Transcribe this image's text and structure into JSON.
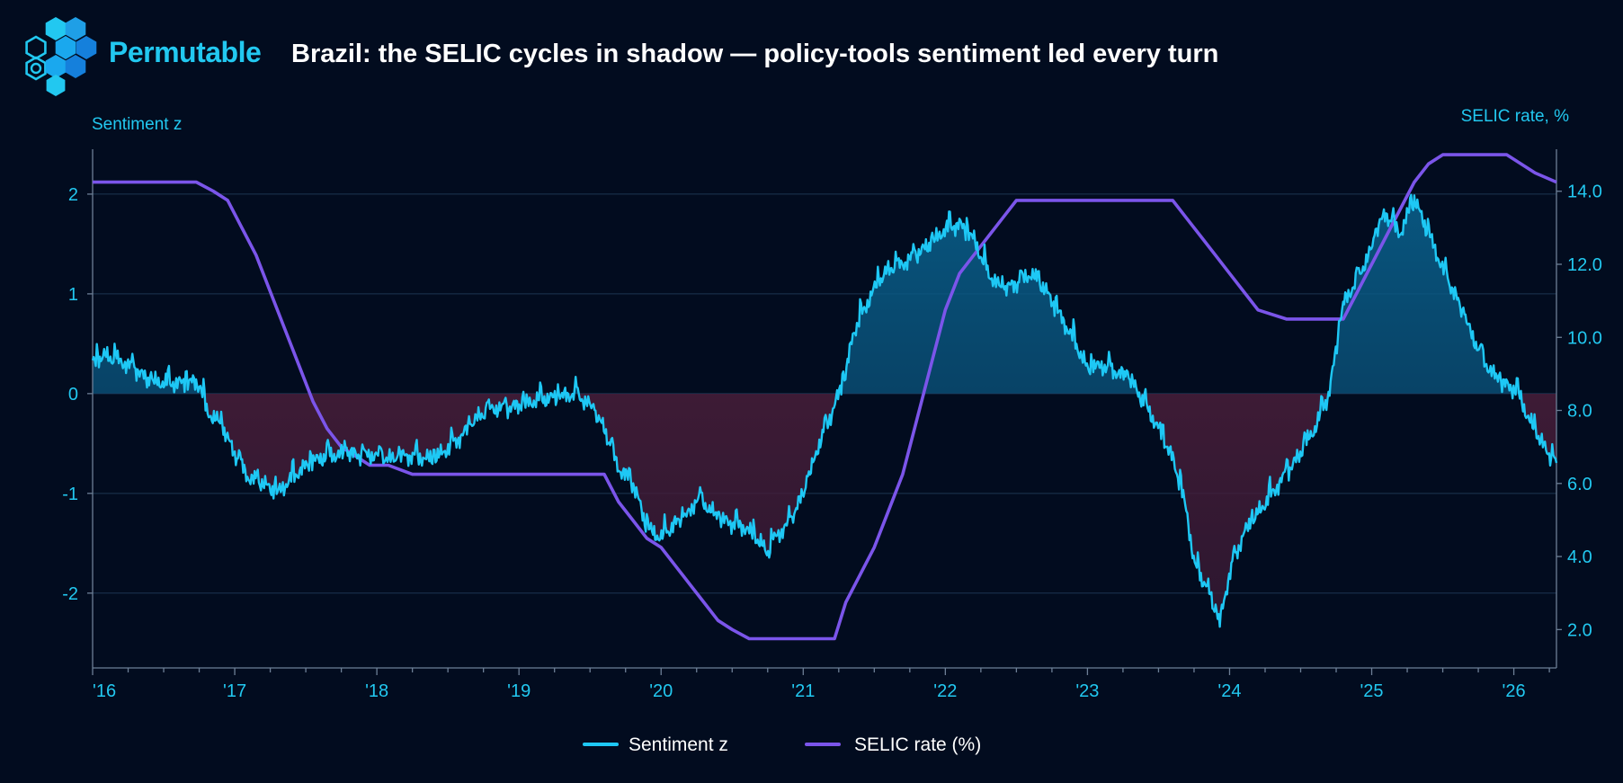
{
  "header": {
    "brand": "Permutable",
    "title": "Brazil: the SELIC cycles in shadow — policy-tools sentiment led every turn"
  },
  "colors": {
    "background": "#020c1f",
    "sentiment": "#1ec8f5",
    "selic": "#7b55ea",
    "positive_fill": "#0a5a86",
    "negative_fill": "#5b2340",
    "accent": "#22c8f0"
  },
  "icons": {
    "logo": "hexagon-cluster-icon"
  },
  "chart_data": {
    "type": "line",
    "left_axis": {
      "label": "Sentiment z",
      "ticks": [
        2,
        1,
        0,
        -1,
        -2
      ],
      "tick_labels": [
        "2",
        "1",
        "0",
        "-1",
        "-2"
      ],
      "range": [
        -2.75,
        2.45
      ]
    },
    "right_axis": {
      "label": "SELIC rate, %",
      "ticks": [
        14,
        12,
        10,
        8,
        6,
        4,
        2
      ],
      "tick_labels": [
        "14.0",
        "12.0",
        "10.0",
        "8.0",
        "6.0",
        "4.0",
        "2.0"
      ],
      "range": [
        0.95,
        15.15
      ]
    },
    "x_axis": {
      "ticks": [
        2016,
        2017,
        2018,
        2019,
        2020,
        2021,
        2022,
        2023,
        2024,
        2025,
        2026
      ],
      "tick_labels": [
        "'16",
        "'17",
        "'18",
        "'19",
        "'20",
        "'21",
        "'22",
        "'23",
        "'24",
        "'25",
        "'26"
      ],
      "range": [
        2016.0,
        2026.3
      ]
    },
    "grid": true,
    "legend_position": "bottom-center",
    "legend": [
      "Sentiment z",
      "SELIC rate (%)"
    ],
    "series": [
      {
        "name": "Sentiment z",
        "axis": "left",
        "shaded_vs_zero": true,
        "x": [
          2016.0,
          2016.08,
          2016.2,
          2016.3,
          2016.4,
          2016.55,
          2016.7,
          2016.76,
          2016.8,
          2016.9,
          2017.0,
          2017.1,
          2017.2,
          2017.25,
          2017.3,
          2017.4,
          2017.5,
          2017.6,
          2017.7,
          2017.8,
          2017.9,
          2018.0,
          2018.1,
          2018.2,
          2018.3,
          2018.4,
          2018.5,
          2018.6,
          2018.7,
          2018.8,
          2018.9,
          2019.0,
          2019.1,
          2019.2,
          2019.3,
          2019.4,
          2019.5,
          2019.6,
          2019.65,
          2019.7,
          2019.8,
          2019.85,
          2019.9,
          2020.0,
          2020.1,
          2020.2,
          2020.25,
          2020.3,
          2020.4,
          2020.5,
          2020.6,
          2020.7,
          2020.75,
          2020.8,
          2020.9,
          2021.0,
          2021.05,
          2021.1,
          2021.2,
          2021.3,
          2021.35,
          2021.4,
          2021.5,
          2021.6,
          2021.7,
          2021.8,
          2021.9,
          2022.0,
          2022.1,
          2022.2,
          2022.3,
          2022.4,
          2022.5,
          2022.6,
          2022.7,
          2022.8,
          2022.9,
          2023.0,
          2023.1,
          2023.2,
          2023.3,
          2023.4,
          2023.5,
          2023.6,
          2023.65,
          2023.7,
          2023.75,
          2023.8,
          2023.85,
          2023.9,
          2023.93,
          2024.0,
          2024.1,
          2024.2,
          2024.3,
          2024.4,
          2024.5,
          2024.6,
          2024.7,
          2024.8,
          2024.9,
          2025.0,
          2025.05,
          2025.1,
          2025.2,
          2025.3,
          2025.4,
          2025.5,
          2025.6,
          2025.7,
          2025.8,
          2025.9,
          2026.0,
          2026.05,
          2026.1,
          2026.2,
          2026.3
        ],
        "values": [
          0.3,
          0.38,
          0.32,
          0.25,
          0.12,
          0.1,
          0.12,
          0.08,
          -0.18,
          -0.3,
          -0.6,
          -0.85,
          -0.9,
          -0.95,
          -1.0,
          -0.85,
          -0.72,
          -0.65,
          -0.62,
          -0.6,
          -0.62,
          -0.62,
          -0.66,
          -0.62,
          -0.64,
          -0.66,
          -0.55,
          -0.42,
          -0.25,
          -0.15,
          -0.15,
          -0.12,
          -0.08,
          -0.05,
          -0.03,
          0.0,
          -0.12,
          -0.35,
          -0.55,
          -0.75,
          -0.9,
          -1.1,
          -1.35,
          -1.45,
          -1.3,
          -1.2,
          -1.05,
          -1.1,
          -1.25,
          -1.3,
          -1.35,
          -1.5,
          -1.6,
          -1.45,
          -1.3,
          -1.0,
          -0.8,
          -0.55,
          -0.2,
          0.2,
          0.6,
          0.75,
          1.05,
          1.25,
          1.3,
          1.4,
          1.5,
          1.65,
          1.7,
          1.55,
          1.2,
          1.05,
          1.1,
          1.2,
          1.05,
          0.8,
          0.55,
          0.25,
          0.28,
          0.22,
          0.15,
          -0.1,
          -0.35,
          -0.65,
          -0.9,
          -1.2,
          -1.7,
          -1.85,
          -1.95,
          -2.2,
          -2.3,
          -1.8,
          -1.4,
          -1.2,
          -1.0,
          -0.8,
          -0.6,
          -0.35,
          0.0,
          0.9,
          1.15,
          1.45,
          1.7,
          1.8,
          1.6,
          1.95,
          1.6,
          1.25,
          0.95,
          0.6,
          0.3,
          0.12,
          0.05,
          -0.05,
          -0.25,
          -0.5,
          -0.72
        ]
      },
      {
        "name": "SELIC rate (%)",
        "axis": "right",
        "x": [
          2016.0,
          2016.73,
          2016.85,
          2016.95,
          2017.05,
          2017.15,
          2017.25,
          2017.35,
          2017.45,
          2017.55,
          2017.65,
          2017.75,
          2017.85,
          2017.95,
          2018.08,
          2018.25,
          2019.6,
          2019.7,
          2019.8,
          2019.9,
          2020.0,
          2020.1,
          2020.2,
          2020.3,
          2020.4,
          2020.5,
          2020.62,
          2021.22,
          2021.3,
          2021.4,
          2021.5,
          2021.6,
          2021.7,
          2021.8,
          2021.9,
          2022.0,
          2022.1,
          2022.2,
          2022.3,
          2022.4,
          2022.5,
          2022.6,
          2022.68,
          2023.6,
          2023.7,
          2023.8,
          2023.9,
          2024.0,
          2024.1,
          2024.2,
          2024.4,
          2024.8,
          2024.9,
          2025.0,
          2025.1,
          2025.2,
          2025.3,
          2025.4,
          2025.5,
          2025.95,
          2026.05,
          2026.15,
          2026.3
        ],
        "values": [
          14.25,
          14.25,
          14.0,
          13.75,
          13.0,
          12.25,
          11.25,
          10.25,
          9.25,
          8.25,
          7.5,
          7.0,
          6.75,
          6.5,
          6.5,
          6.25,
          6.25,
          5.5,
          5.0,
          4.5,
          4.25,
          3.75,
          3.25,
          2.75,
          2.25,
          2.0,
          1.75,
          1.75,
          2.75,
          3.5,
          4.25,
          5.25,
          6.25,
          7.75,
          9.25,
          10.75,
          11.75,
          12.25,
          12.75,
          13.25,
          13.75,
          13.75,
          13.75,
          13.75,
          13.25,
          12.75,
          12.25,
          11.75,
          11.25,
          10.75,
          10.5,
          10.5,
          11.25,
          12.0,
          12.75,
          13.5,
          14.25,
          14.75,
          15.0,
          15.0,
          14.75,
          14.5,
          14.25
        ]
      }
    ]
  }
}
